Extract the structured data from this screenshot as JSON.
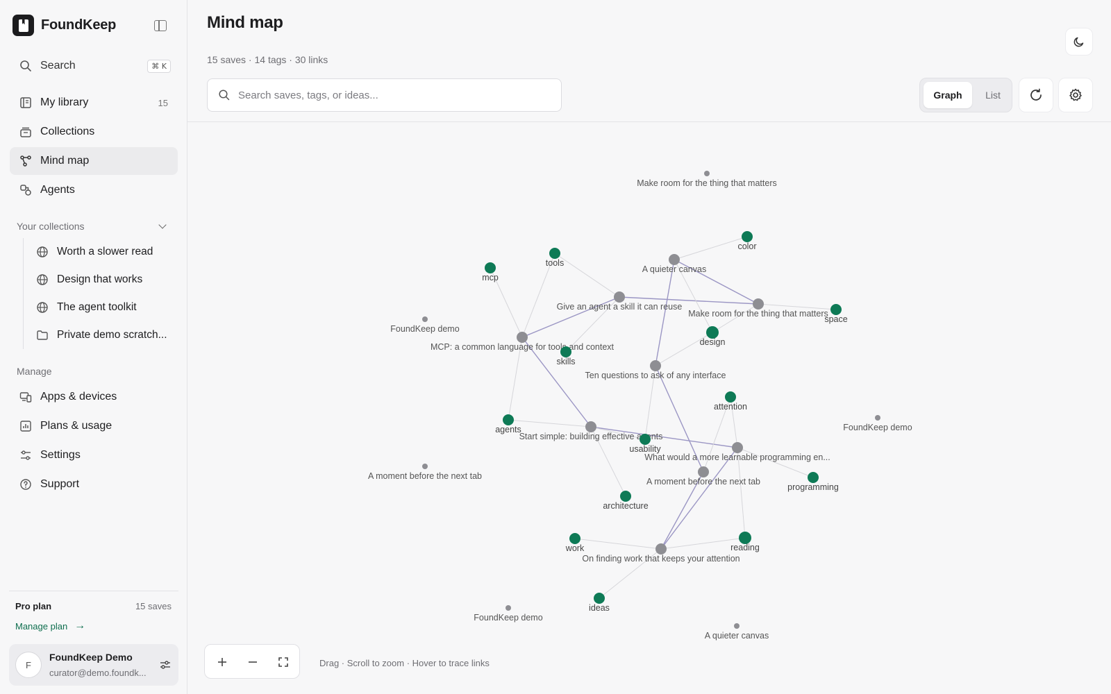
{
  "app": {
    "name": "FoundKeep"
  },
  "sidebar": {
    "search": {
      "label": "Search",
      "shortcut": "⌘ K"
    },
    "nav": [
      {
        "label": "My library",
        "count": "15",
        "icon": "library-icon"
      },
      {
        "label": "Collections",
        "count": "",
        "icon": "collections-icon"
      },
      {
        "label": "Mind map",
        "count": "",
        "icon": "mindmap-icon",
        "active": true
      },
      {
        "label": "Agents",
        "count": "",
        "icon": "agents-icon"
      }
    ],
    "collections_heading": "Your collections",
    "collections": [
      {
        "label": "Worth a slower read",
        "icon": "globe-icon"
      },
      {
        "label": "Design that works",
        "icon": "globe-icon"
      },
      {
        "label": "The agent toolkit",
        "icon": "globe-icon"
      },
      {
        "label": "Private demo scratch...",
        "icon": "folder-icon"
      }
    ],
    "manage_heading": "Manage",
    "manage": [
      {
        "label": "Apps & devices",
        "icon": "devices-icon"
      },
      {
        "label": "Plans & usage",
        "icon": "chart-icon"
      },
      {
        "label": "Settings",
        "icon": "sliders-icon"
      },
      {
        "label": "Support",
        "icon": "help-icon"
      }
    ],
    "plan": {
      "title": "Pro plan",
      "saves": "15 saves",
      "manage_label": "Manage plan"
    },
    "user": {
      "initial": "F",
      "name": "FoundKeep Demo",
      "email": "curator@demo.foundk..."
    }
  },
  "main": {
    "title": "Mind map",
    "stats": "15 saves · 14 tags · 30 links",
    "search_placeholder": "Search saves, tags, or ideas...",
    "view_graph": "Graph",
    "view_list": "List",
    "hint": "Drag · Scroll to zoom · Hover to trace links"
  },
  "colors": {
    "accent": "#0e7a56",
    "save_node": "#8e8e93",
    "strong_link": "#9b96c4",
    "weak_link": "#d6d6da"
  },
  "graph": {
    "saves": [
      {
        "id": "s1",
        "label": "Make room for the thing that matters",
        "size": "small"
      },
      {
        "id": "s2",
        "label": "A quieter canvas",
        "size": "large"
      },
      {
        "id": "s3",
        "label": "Give an agent a skill it can reuse",
        "size": "large"
      },
      {
        "id": "s4",
        "label": "Make room for the thing that matters",
        "size": "large"
      },
      {
        "id": "s5",
        "label": "FoundKeep demo",
        "size": "small"
      },
      {
        "id": "s6",
        "label": "MCP: a common language for tools and context",
        "size": "large"
      },
      {
        "id": "s7",
        "label": "Ten questions to ask of any interface",
        "size": "large"
      },
      {
        "id": "s8",
        "label": "FoundKeep demo",
        "size": "small"
      },
      {
        "id": "s9",
        "label": "Start simple: building effective agents",
        "size": "large"
      },
      {
        "id": "s10",
        "label": "What would a more learnable programming en...",
        "size": "large"
      },
      {
        "id": "s11",
        "label": "A moment before the next tab",
        "size": "small"
      },
      {
        "id": "s12",
        "label": "A moment before the next tab",
        "size": "large"
      },
      {
        "id": "s13",
        "label": "On finding work that keeps your attention",
        "size": "large"
      },
      {
        "id": "s14",
        "label": "FoundKeep demo",
        "size": "small"
      },
      {
        "id": "s15",
        "label": "A quieter canvas",
        "size": "small"
      }
    ],
    "tags": [
      {
        "id": "t1",
        "label": "color"
      },
      {
        "id": "t2",
        "label": "tools"
      },
      {
        "id": "t3",
        "label": "mcp"
      },
      {
        "id": "t4",
        "label": "space"
      },
      {
        "id": "t5",
        "label": "design"
      },
      {
        "id": "t6",
        "label": "skills"
      },
      {
        "id": "t7",
        "label": "attention"
      },
      {
        "id": "t8",
        "label": "agents"
      },
      {
        "id": "t9",
        "label": "usability"
      },
      {
        "id": "t10",
        "label": "programming"
      },
      {
        "id": "t11",
        "label": "architecture"
      },
      {
        "id": "t12",
        "label": "work"
      },
      {
        "id": "t13",
        "label": "reading"
      },
      {
        "id": "t14",
        "label": "ideas"
      }
    ],
    "links": [
      [
        "s2",
        "s4",
        1
      ],
      [
        "s3",
        "s4",
        1
      ],
      [
        "s3",
        "s6",
        1
      ],
      [
        "s2",
        "s7",
        1
      ],
      [
        "s6",
        "s9",
        1
      ],
      [
        "s9",
        "s10",
        1
      ],
      [
        "s7",
        "s12",
        1
      ],
      [
        "s10",
        "s13",
        1
      ],
      [
        "s12",
        "s13",
        1
      ],
      [
        "s2",
        "t1",
        0
      ],
      [
        "s4",
        "t4",
        0
      ],
      [
        "s3",
        "t2",
        0
      ],
      [
        "s6",
        "t2",
        0
      ],
      [
        "s6",
        "t3",
        0
      ],
      [
        "s3",
        "t6",
        0
      ],
      [
        "s7",
        "t5",
        0
      ],
      [
        "s4",
        "t5",
        0
      ],
      [
        "s6",
        "t8",
        0
      ],
      [
        "s9",
        "t8",
        0
      ],
      [
        "s9",
        "t9",
        0
      ],
      [
        "s7",
        "t9",
        0
      ],
      [
        "s10",
        "t7",
        0
      ],
      [
        "s12",
        "t7",
        0
      ],
      [
        "s10",
        "t10",
        0
      ],
      [
        "s9",
        "t11",
        0
      ],
      [
        "s13",
        "t12",
        0
      ],
      [
        "s13",
        "t13",
        0
      ],
      [
        "s10",
        "t13",
        0
      ],
      [
        "s13",
        "t14",
        0
      ],
      [
        "s2",
        "t5",
        0
      ]
    ]
  }
}
